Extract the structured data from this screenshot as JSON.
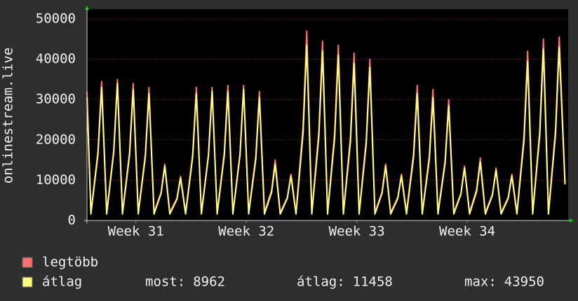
{
  "chart_data": {
    "type": "line",
    "y_label": "onlinestream.live",
    "x": [
      0,
      0.25,
      0.7,
      0.93,
      1.25,
      1.7,
      1.93,
      2.25,
      2.7,
      2.93,
      3.25,
      3.7,
      3.93,
      4.25,
      4.7,
      4.93,
      5.25,
      5.7,
      5.93,
      6.25,
      6.7,
      6.93,
      7.25,
      7.7,
      7.93,
      8.25,
      8.7,
      8.93,
      9.25,
      9.7,
      9.93,
      10.25,
      10.7,
      10.93,
      11.25,
      11.7,
      11.93,
      12.25,
      12.7,
      12.93,
      13.25,
      13.7,
      13.93,
      14.25,
      14.7,
      14.93,
      15.25,
      15.7,
      15.93,
      16.25,
      16.7,
      16.93,
      17.25,
      17.7,
      17.93,
      18.25,
      18.7,
      18.93,
      19.25,
      19.7,
      19.93,
      20.25,
      20.7,
      20.93,
      21.25,
      21.7,
      21.93,
      22.25,
      22.7,
      22.93,
      23.25,
      23.7,
      23.93,
      24.25,
      24.7,
      24.93,
      25.25,
      25.7,
      25.93,
      26.25,
      26.7,
      26.93,
      27.25,
      27.7,
      27.93,
      28.25,
      28.7,
      28.93,
      29.25,
      29.7,
      29.93,
      30.3
    ],
    "series": [
      {
        "name": "legtöbb",
        "color": "#ff7070",
        "values": [
          32000,
          2000,
          17250,
          34500,
          2000,
          17500,
          35000,
          2000,
          17000,
          34000,
          2000,
          16500,
          33000,
          2000,
          7000,
          14000,
          2000,
          5500,
          11000,
          2000,
          16500,
          33000,
          2000,
          16500,
          33000,
          2000,
          16750,
          33500,
          2000,
          16750,
          33500,
          2000,
          16000,
          32000,
          2000,
          7500,
          15000,
          2000,
          5750,
          11500,
          2000,
          23500,
          47000,
          2000,
          22250,
          44500,
          2000,
          21750,
          43500,
          2000,
          20750,
          41500,
          2000,
          20000,
          40000,
          2000,
          7000,
          14000,
          2000,
          5750,
          11500,
          2000,
          16750,
          33500,
          2000,
          16250,
          32500,
          2000,
          15000,
          30000,
          2000,
          6750,
          13500,
          2000,
          7750,
          15500,
          2000,
          6500,
          13000,
          2000,
          5750,
          11500,
          2000,
          21000,
          42000,
          2000,
          22500,
          45000,
          2000,
          22750,
          45500,
          9200
        ]
      },
      {
        "name": "átlag",
        "color": "#ffff80",
        "values": [
          30500,
          1600,
          16500,
          33000,
          1600,
          17000,
          34000,
          1600,
          16250,
          32500,
          1600,
          15750,
          31500,
          1600,
          6750,
          13500,
          1600,
          5250,
          10500,
          1600,
          15750,
          31500,
          1600,
          16000,
          32000,
          1600,
          16000,
          32000,
          1600,
          16250,
          32500,
          1600,
          15250,
          30500,
          1600,
          7000,
          14000,
          1600,
          5500,
          11000,
          1600,
          21750,
          43500,
          1600,
          21000,
          42000,
          1600,
          20500,
          41000,
          1600,
          19500,
          39000,
          1600,
          19000,
          38000,
          1600,
          6750,
          13500,
          1600,
          5500,
          11000,
          1600,
          15750,
          31500,
          1600,
          15250,
          30500,
          1600,
          14250,
          28500,
          1600,
          6500,
          13000,
          1600,
          7250,
          14500,
          1600,
          6250,
          12500,
          1600,
          5500,
          11000,
          1600,
          19750,
          39500,
          1600,
          21250,
          42500,
          1600,
          21500,
          43000,
          8962
        ]
      }
    ],
    "xlim": [
      0,
      30.5
    ],
    "xticks": [
      {
        "value": 3.1,
        "label": "Week 31"
      },
      {
        "value": 10.1,
        "label": "Week 32"
      },
      {
        "value": 17.1,
        "label": "Week 33"
      },
      {
        "value": 24.1,
        "label": "Week 34"
      }
    ],
    "ylim": [
      0,
      50000
    ],
    "yticks": [
      0,
      10000,
      20000,
      30000,
      40000,
      50000
    ],
    "grid": true,
    "stats": [
      {
        "label": "most:",
        "value": 8962
      },
      {
        "label": "átlag:",
        "value": 11458
      },
      {
        "label": "max:",
        "value": 43950
      }
    ]
  }
}
